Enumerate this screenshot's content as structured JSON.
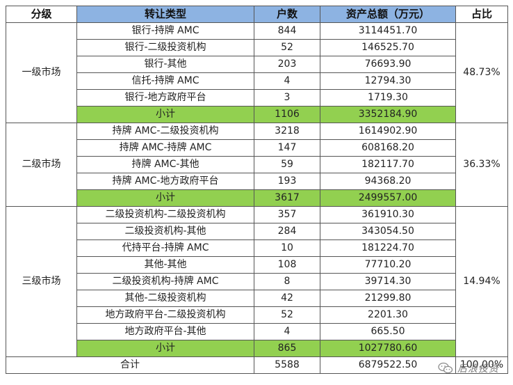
{
  "headers": {
    "level": "分级",
    "type": "转让类型",
    "count": "户数",
    "assets": "资产总额（万元）",
    "share": "占比"
  },
  "groups": [
    {
      "level": "一级市场",
      "share": "48.73%",
      "rows": [
        {
          "type": "银行-持牌 AMC",
          "count": "844",
          "assets": "3114451.70"
        },
        {
          "type": "银行-二级投资机构",
          "count": "52",
          "assets": "146525.70"
        },
        {
          "type": "银行-其他",
          "count": "203",
          "assets": "76693.90"
        },
        {
          "type": "信托-持牌 AMC",
          "count": "4",
          "assets": "12794.30"
        },
        {
          "type": "银行-地方政府平台",
          "count": "3",
          "assets": "1719.30"
        }
      ],
      "subtotal": {
        "label": "小计",
        "count": "1106",
        "assets": "3352184.90"
      }
    },
    {
      "level": "二级市场",
      "share": "36.33%",
      "rows": [
        {
          "type": "持牌 AMC-二级投资机构",
          "count": "3218",
          "assets": "1614902.90"
        },
        {
          "type": "持牌 AMC-持牌 AMC",
          "count": "147",
          "assets": "608168.20"
        },
        {
          "type": "持牌 AMC-其他",
          "count": "59",
          "assets": "182117.70"
        },
        {
          "type": "持牌 AMC-地方政府平台",
          "count": "193",
          "assets": "94368.20"
        }
      ],
      "subtotal": {
        "label": "小计",
        "count": "3617",
        "assets": "2499557.00"
      }
    },
    {
      "level": "三级市场",
      "share": "14.94%",
      "rows": [
        {
          "type": "二级投资机构-二级投资机构",
          "count": "357",
          "assets": "361910.30"
        },
        {
          "type": "二级投资机构-其他",
          "count": "284",
          "assets": "343054.50"
        },
        {
          "type": "代持平台-持牌 AMC",
          "count": "10",
          "assets": "181224.70"
        },
        {
          "type": "其他-其他",
          "count": "108",
          "assets": "77710.20"
        },
        {
          "type": "二级投资机构-持牌 AMC",
          "count": "8",
          "assets": "39714.30"
        },
        {
          "type": "其他-二级投资机构",
          "count": "42",
          "assets": "21299.80"
        },
        {
          "type": "地方政府平台-二级投资机构",
          "count": "52",
          "assets": "2201.30"
        },
        {
          "type": "地方政府平台-其他",
          "count": "4",
          "assets": "665.50"
        }
      ],
      "subtotal": {
        "label": "小计",
        "count": "865",
        "assets": "1027780.60"
      }
    }
  ],
  "total": {
    "label": "合计",
    "count": "5588",
    "assets": "6879522.50",
    "share": "100.00%"
  },
  "watermark": {
    "text": "后浪投资",
    "icon": "wechat-icon"
  },
  "colors": {
    "header_bg": "#8db3e2",
    "subtotal_bg": "#92d050"
  }
}
